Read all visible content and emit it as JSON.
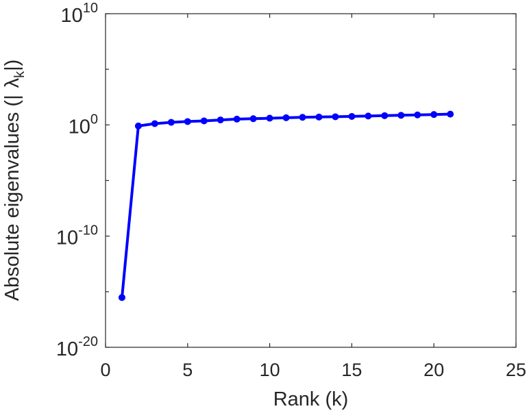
{
  "chart_data": {
    "type": "line",
    "title": "",
    "xlabel": "Rank (k)",
    "ylabel": {
      "text": "Absolute eigenvalues (|",
      "symbol": "λ",
      "subscript": "k",
      "suffix": "|)"
    },
    "xlim": [
      0,
      25
    ],
    "ylim": [
      1e-20,
      10000000000.0
    ],
    "yscale": "log",
    "grid": false,
    "xticks": [
      {
        "value": 0,
        "label": "0"
      },
      {
        "value": 5,
        "label": "5"
      },
      {
        "value": 10,
        "label": "10"
      },
      {
        "value": 15,
        "label": "15"
      },
      {
        "value": 20,
        "label": "20"
      },
      {
        "value": 25,
        "label": "25"
      }
    ],
    "yticks": [
      {
        "value": 1e-20,
        "base": "10",
        "exp": "-20"
      },
      {
        "value": 1e-10,
        "base": "10",
        "exp": "-10"
      },
      {
        "value": 1,
        "base": "10",
        "exp": "0"
      },
      {
        "value": 10000000000.0,
        "base": "10",
        "exp": "10"
      }
    ],
    "series": [
      {
        "color": "#0000ff",
        "marker": "circle",
        "x": [
          1,
          2,
          3,
          4,
          5,
          6,
          7,
          8,
          9,
          10,
          11,
          12,
          13,
          14,
          15,
          16,
          17,
          18,
          19,
          20,
          21
        ],
        "y": [
          3e-16,
          0.8,
          1.3,
          1.7,
          2.0,
          2.3,
          2.8,
          3.3,
          3.6,
          4.0,
          4.4,
          4.8,
          5.1,
          5.4,
          5.8,
          6.3,
          6.8,
          7.3,
          7.9,
          8.6,
          9.3
        ]
      }
    ]
  }
}
